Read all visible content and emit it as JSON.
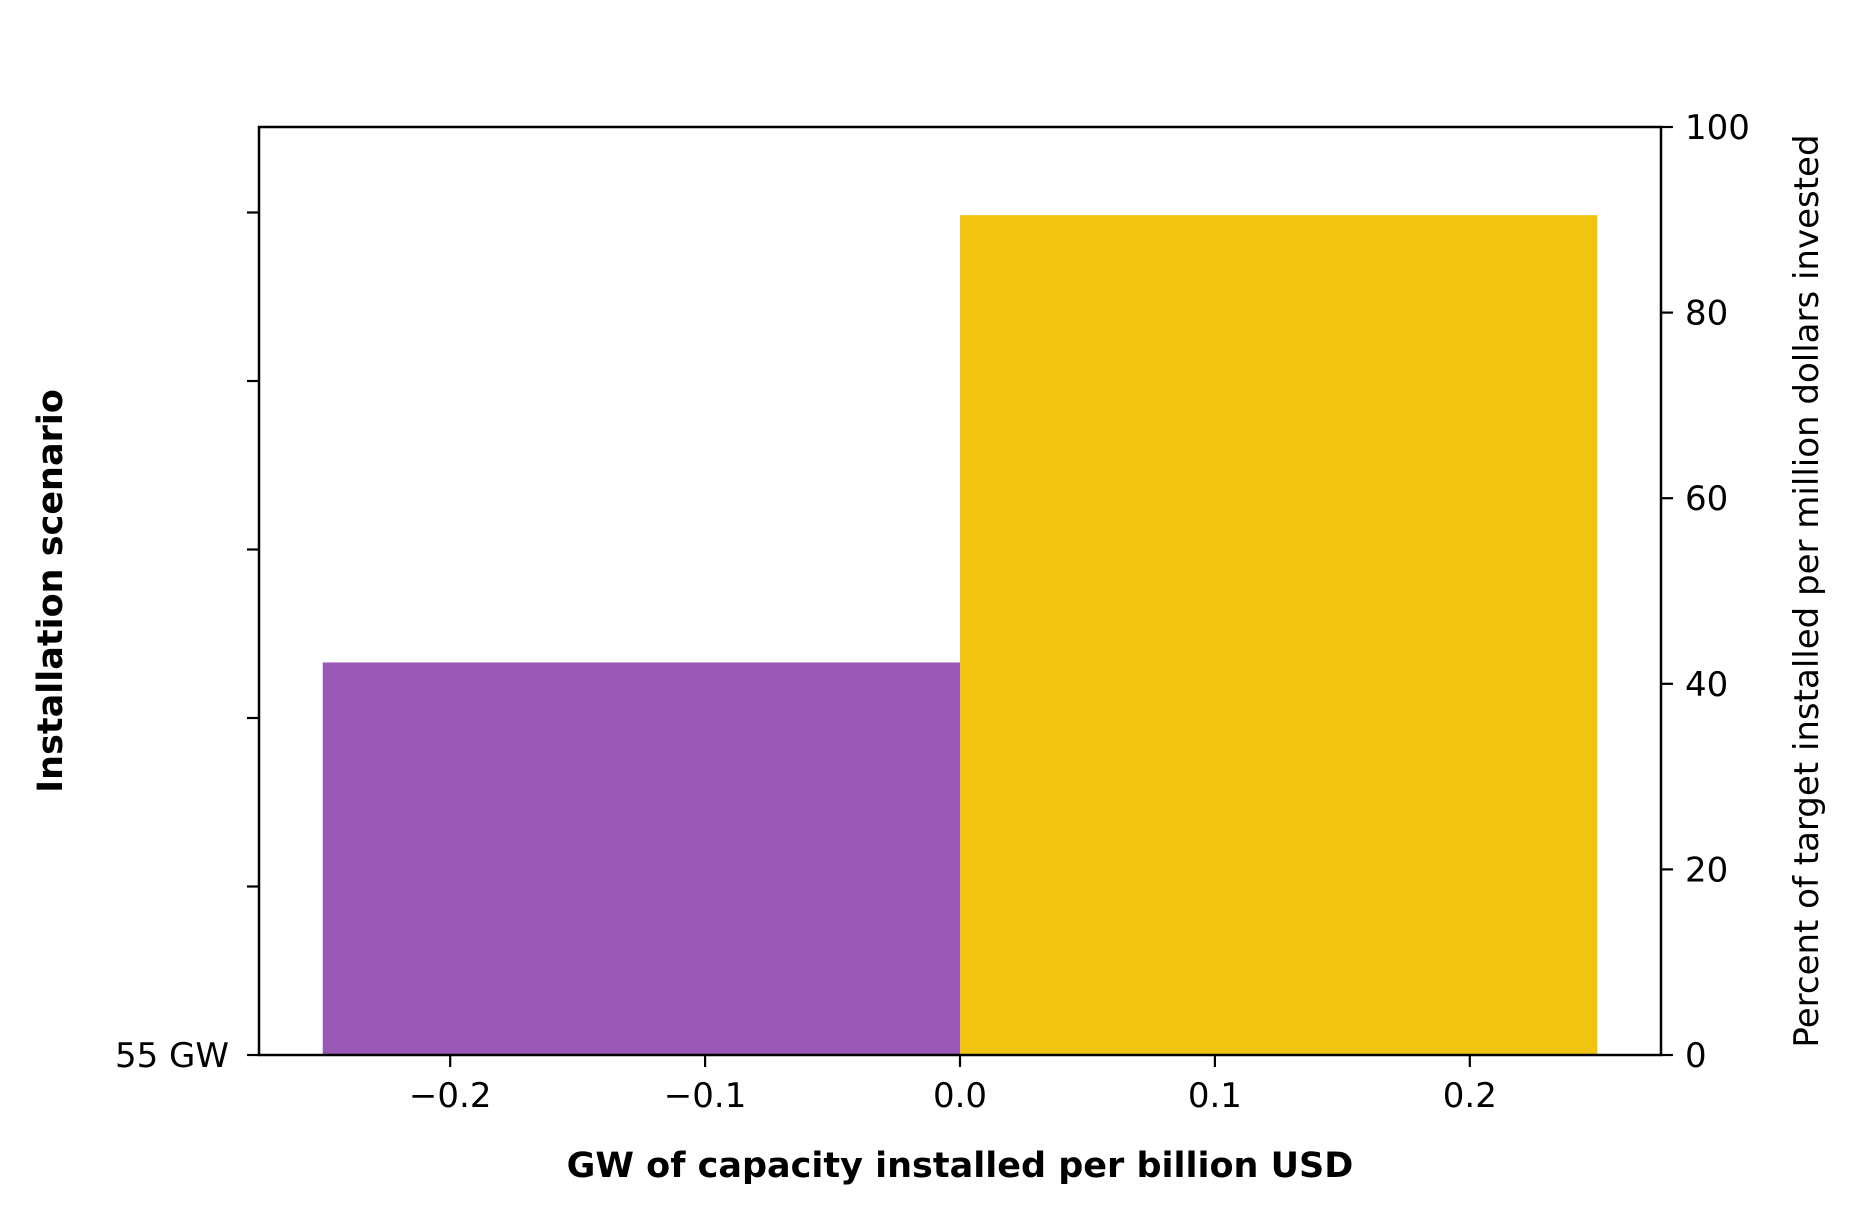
{
  "chart_data": {
    "type": "bar",
    "xlabel": "GW of capacity installed per billion USD",
    "ylabel_left": "Installation scenario",
    "ylabel_right": "Percent of target installed per million dollars invested",
    "left_y_tick_labels": [
      "55 GW"
    ],
    "x_ticks": [
      -0.2,
      -0.1,
      0.0,
      0.1,
      0.2
    ],
    "x_tick_labels": [
      "−0.2",
      "−0.1",
      "0.0",
      "0.1",
      "0.2"
    ],
    "xlim": [
      -0.275,
      0.275
    ],
    "right_ylim": [
      0,
      100
    ],
    "right_y_ticks": [
      0,
      20,
      40,
      60,
      80,
      100
    ],
    "right_y_tick_labels": [
      "0",
      "20",
      "40",
      "60",
      "80",
      "100"
    ],
    "bars": [
      {
        "x_start": -0.25,
        "x_end": 0.0,
        "value": 42.3,
        "color": "#9b59b6"
      },
      {
        "x_start": 0.0,
        "x_end": 0.25,
        "value": 90.5,
        "color": "#f1c40f"
      }
    ],
    "grid": false,
    "legend": "none"
  }
}
